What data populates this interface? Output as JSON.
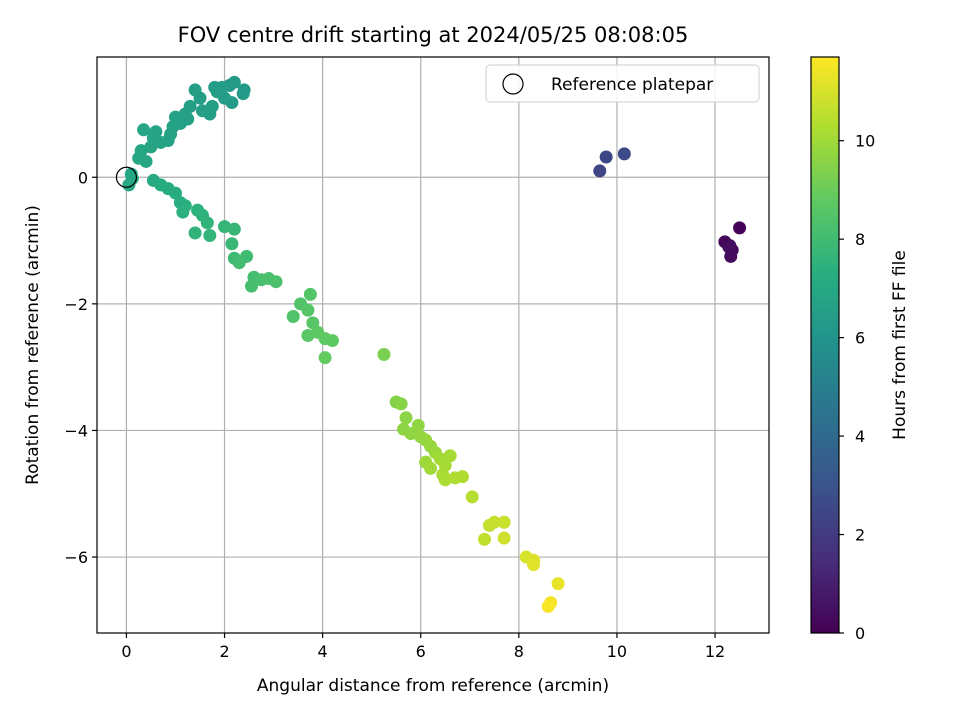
{
  "chart_data": {
    "type": "scatter",
    "title": "FOV centre drift starting at 2024/05/25 08:08:05",
    "xlabel": "Angular distance from reference (arcmin)",
    "ylabel": "Rotation from reference (arcmin)",
    "xlim": [
      -0.6,
      13.1
    ],
    "ylim": [
      -7.2,
      1.9
    ],
    "x_ticks": [
      0,
      2,
      4,
      6,
      8,
      10,
      12
    ],
    "y_ticks": [
      -6,
      -4,
      -2,
      0
    ],
    "grid": true,
    "legend": {
      "position": "top-right",
      "entries": [
        "Reference platepar"
      ]
    },
    "reference_point": {
      "x": 0,
      "y": 0
    },
    "colorbar": {
      "label": "Hours from first FF file",
      "range": [
        0,
        11.7
      ],
      "ticks": [
        0,
        2,
        4,
        6,
        8,
        10
      ],
      "colormap": "viridis"
    },
    "points": [
      {
        "x": 12.5,
        "y": -0.8,
        "c": 0.1
      },
      {
        "x": 12.2,
        "y": -1.02,
        "c": 0.2
      },
      {
        "x": 12.3,
        "y": -1.08,
        "c": 0.25
      },
      {
        "x": 12.35,
        "y": -1.15,
        "c": 0.3
      },
      {
        "x": 12.32,
        "y": -1.25,
        "c": 0.35
      },
      {
        "x": 12.28,
        "y": -1.1,
        "c": 0.4
      },
      {
        "x": 9.65,
        "y": 0.1,
        "c": 2.4
      },
      {
        "x": 9.78,
        "y": 0.32,
        "c": 2.5
      },
      {
        "x": 10.15,
        "y": 0.37,
        "c": 2.6
      },
      {
        "x": 2.1,
        "y": 1.45,
        "c": 6.3
      },
      {
        "x": 2.2,
        "y": 1.5,
        "c": 6.3
      },
      {
        "x": 2.4,
        "y": 1.38,
        "c": 6.3
      },
      {
        "x": 2.38,
        "y": 1.32,
        "c": 6.35
      },
      {
        "x": 2.15,
        "y": 1.18,
        "c": 6.35
      },
      {
        "x": 2.0,
        "y": 1.25,
        "c": 6.4
      },
      {
        "x": 1.95,
        "y": 1.42,
        "c": 6.4
      },
      {
        "x": 1.8,
        "y": 1.42,
        "c": 6.4
      },
      {
        "x": 1.85,
        "y": 1.35,
        "c": 6.45
      },
      {
        "x": 1.7,
        "y": 1.0,
        "c": 6.45
      },
      {
        "x": 1.75,
        "y": 1.12,
        "c": 6.5
      },
      {
        "x": 1.5,
        "y": 1.25,
        "c": 6.5
      },
      {
        "x": 1.4,
        "y": 1.38,
        "c": 6.5
      },
      {
        "x": 1.55,
        "y": 1.05,
        "c": 6.55
      },
      {
        "x": 1.3,
        "y": 1.12,
        "c": 6.55
      },
      {
        "x": 1.2,
        "y": 1.0,
        "c": 6.6
      },
      {
        "x": 1.25,
        "y": 0.92,
        "c": 6.6
      },
      {
        "x": 1.1,
        "y": 0.85,
        "c": 6.6
      },
      {
        "x": 1.0,
        "y": 0.95,
        "c": 6.65
      },
      {
        "x": 0.95,
        "y": 0.8,
        "c": 6.65
      },
      {
        "x": 0.9,
        "y": 0.68,
        "c": 6.7
      },
      {
        "x": 0.85,
        "y": 0.58,
        "c": 6.7
      },
      {
        "x": 0.7,
        "y": 0.55,
        "c": 6.75
      },
      {
        "x": 0.6,
        "y": 0.72,
        "c": 6.75
      },
      {
        "x": 0.55,
        "y": 0.62,
        "c": 6.8
      },
      {
        "x": 0.5,
        "y": 0.48,
        "c": 6.8
      },
      {
        "x": 0.35,
        "y": 0.75,
        "c": 6.85
      },
      {
        "x": 0.3,
        "y": 0.42,
        "c": 6.85
      },
      {
        "x": 0.25,
        "y": 0.3,
        "c": 6.9
      },
      {
        "x": 0.4,
        "y": 0.25,
        "c": 6.9
      },
      {
        "x": 0.1,
        "y": 0.05,
        "c": 6.95
      },
      {
        "x": 0.12,
        "y": -0.02,
        "c": 6.95
      },
      {
        "x": 0.05,
        "y": -0.12,
        "c": 7.0
      },
      {
        "x": 0.55,
        "y": -0.05,
        "c": 7.1
      },
      {
        "x": 0.7,
        "y": -0.12,
        "c": 7.15
      },
      {
        "x": 0.85,
        "y": -0.18,
        "c": 7.2
      },
      {
        "x": 1.0,
        "y": -0.25,
        "c": 7.25
      },
      {
        "x": 1.1,
        "y": -0.4,
        "c": 7.3
      },
      {
        "x": 1.2,
        "y": -0.45,
        "c": 7.35
      },
      {
        "x": 1.15,
        "y": -0.55,
        "c": 7.4
      },
      {
        "x": 1.45,
        "y": -0.52,
        "c": 7.45
      },
      {
        "x": 1.55,
        "y": -0.6,
        "c": 7.5
      },
      {
        "x": 1.4,
        "y": -0.88,
        "c": 7.55
      },
      {
        "x": 1.65,
        "y": -0.72,
        "c": 7.6
      },
      {
        "x": 1.7,
        "y": -0.92,
        "c": 7.65
      },
      {
        "x": 2.0,
        "y": -0.78,
        "c": 7.7
      },
      {
        "x": 2.2,
        "y": -0.82,
        "c": 7.75
      },
      {
        "x": 2.15,
        "y": -1.05,
        "c": 7.8
      },
      {
        "x": 2.2,
        "y": -1.28,
        "c": 7.9
      },
      {
        "x": 2.45,
        "y": -1.25,
        "c": 8.0
      },
      {
        "x": 2.3,
        "y": -1.35,
        "c": 8.05
      },
      {
        "x": 2.6,
        "y": -1.58,
        "c": 8.1
      },
      {
        "x": 2.55,
        "y": -1.72,
        "c": 8.15
      },
      {
        "x": 2.75,
        "y": -1.62,
        "c": 8.2
      },
      {
        "x": 2.9,
        "y": -1.6,
        "c": 8.25
      },
      {
        "x": 3.05,
        "y": -1.65,
        "c": 8.3
      },
      {
        "x": 3.4,
        "y": -2.2,
        "c": 8.4
      },
      {
        "x": 3.55,
        "y": -2.0,
        "c": 8.45
      },
      {
        "x": 3.75,
        "y": -1.85,
        "c": 8.5
      },
      {
        "x": 3.7,
        "y": -2.1,
        "c": 8.55
      },
      {
        "x": 3.8,
        "y": -2.3,
        "c": 8.6
      },
      {
        "x": 3.7,
        "y": -2.5,
        "c": 8.65
      },
      {
        "x": 3.9,
        "y": -2.45,
        "c": 8.7
      },
      {
        "x": 4.05,
        "y": -2.55,
        "c": 8.75
      },
      {
        "x": 4.2,
        "y": -2.58,
        "c": 8.8
      },
      {
        "x": 4.05,
        "y": -2.85,
        "c": 8.85
      },
      {
        "x": 5.25,
        "y": -2.8,
        "c": 9.3
      },
      {
        "x": 5.5,
        "y": -3.55,
        "c": 9.5
      },
      {
        "x": 5.6,
        "y": -3.58,
        "c": 9.55
      },
      {
        "x": 5.7,
        "y": -3.8,
        "c": 9.6
      },
      {
        "x": 5.65,
        "y": -3.98,
        "c": 9.65
      },
      {
        "x": 5.8,
        "y": -4.05,
        "c": 9.7
      },
      {
        "x": 5.95,
        "y": -3.92,
        "c": 9.7
      },
      {
        "x": 6.0,
        "y": -4.1,
        "c": 9.75
      },
      {
        "x": 6.1,
        "y": -4.15,
        "c": 9.8
      },
      {
        "x": 6.2,
        "y": -4.25,
        "c": 9.85
      },
      {
        "x": 6.3,
        "y": -4.35,
        "c": 9.9
      },
      {
        "x": 6.1,
        "y": -4.5,
        "c": 9.95
      },
      {
        "x": 6.2,
        "y": -4.6,
        "c": 10.0
      },
      {
        "x": 6.4,
        "y": -4.45,
        "c": 10.05
      },
      {
        "x": 6.5,
        "y": -4.55,
        "c": 10.1
      },
      {
        "x": 6.6,
        "y": -4.4,
        "c": 10.1
      },
      {
        "x": 6.45,
        "y": -4.7,
        "c": 10.15
      },
      {
        "x": 6.5,
        "y": -4.78,
        "c": 10.2
      },
      {
        "x": 6.7,
        "y": -4.75,
        "c": 10.25
      },
      {
        "x": 6.85,
        "y": -4.73,
        "c": 10.3
      },
      {
        "x": 7.05,
        "y": -5.05,
        "c": 10.4
      },
      {
        "x": 7.3,
        "y": -5.72,
        "c": 10.6
      },
      {
        "x": 7.4,
        "y": -5.5,
        "c": 10.65
      },
      {
        "x": 7.5,
        "y": -5.45,
        "c": 10.7
      },
      {
        "x": 7.7,
        "y": -5.45,
        "c": 10.75
      },
      {
        "x": 7.7,
        "y": -5.7,
        "c": 10.8
      },
      {
        "x": 8.15,
        "y": -6.0,
        "c": 11.0
      },
      {
        "x": 8.3,
        "y": -6.05,
        "c": 11.1
      },
      {
        "x": 8.3,
        "y": -6.12,
        "c": 11.15
      },
      {
        "x": 8.8,
        "y": -6.42,
        "c": 11.3
      },
      {
        "x": 8.65,
        "y": -6.72,
        "c": 11.5
      },
      {
        "x": 8.6,
        "y": -6.78,
        "c": 11.6
      }
    ]
  }
}
